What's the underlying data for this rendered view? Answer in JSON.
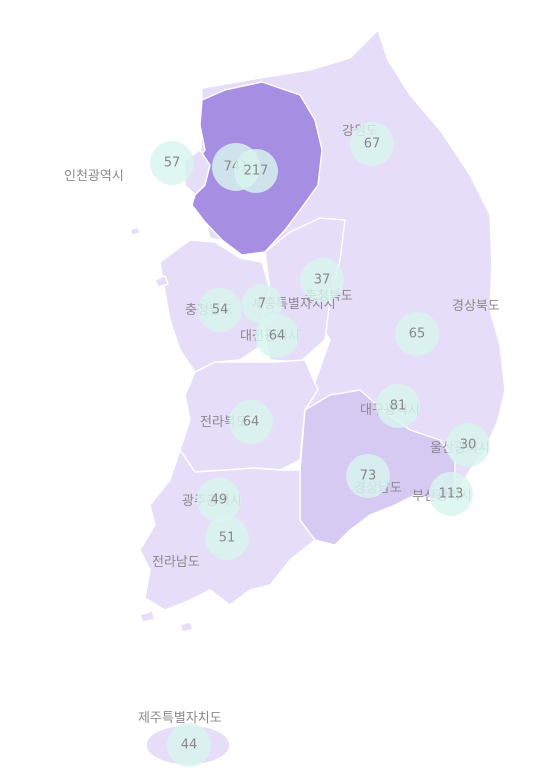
{
  "colors": {
    "base": "#e6ddf8",
    "medium": "#d6c9f2",
    "highlight": "#a68ee2",
    "bubble": "#d8f5ee",
    "label": "#8a8a8a"
  },
  "regions": [
    {
      "id": "incheon",
      "label": "인천광역시"
    },
    {
      "id": "gangwon",
      "label": "강원도"
    },
    {
      "id": "chungbuk",
      "label": "충청북도"
    },
    {
      "id": "chungnam",
      "label": "충청남도"
    },
    {
      "id": "sejong",
      "label": "세종특별자치시"
    },
    {
      "id": "daejeon",
      "label": "대전광역시"
    },
    {
      "id": "gyeongbuk",
      "label": "경상북도"
    },
    {
      "id": "daegu",
      "label": "대구광역시"
    },
    {
      "id": "jeonbuk",
      "label": "전라북도"
    },
    {
      "id": "ulsan",
      "label": "울산광역시"
    },
    {
      "id": "gyeongnam",
      "label": "경상남도"
    },
    {
      "id": "busan",
      "label": "부산광역시"
    },
    {
      "id": "gwangju",
      "label": "광주광역시"
    },
    {
      "id": "jeonnam",
      "label": "전라남도"
    },
    {
      "id": "jeju",
      "label": "제주특별자치도"
    }
  ],
  "bubbles": [
    {
      "id": "incheon",
      "value": "57"
    },
    {
      "id": "seoul",
      "value": "741"
    },
    {
      "id": "gyeonggi",
      "value": "217"
    },
    {
      "id": "gangwon",
      "value": "67"
    },
    {
      "id": "chungbuk",
      "value": "37"
    },
    {
      "id": "chungnam",
      "value": "54"
    },
    {
      "id": "sejong",
      "value": "7"
    },
    {
      "id": "daejeon",
      "value": "64"
    },
    {
      "id": "gyeongbuk",
      "value": "65"
    },
    {
      "id": "daegu",
      "value": "81"
    },
    {
      "id": "jeonbuk",
      "value": "64"
    },
    {
      "id": "ulsan",
      "value": "30"
    },
    {
      "id": "gyeongnam",
      "value": "73"
    },
    {
      "id": "busan",
      "value": "113"
    },
    {
      "id": "gwangju",
      "value": "49"
    },
    {
      "id": "jeonnam",
      "value": "51"
    },
    {
      "id": "jeju",
      "value": "44"
    }
  ]
}
